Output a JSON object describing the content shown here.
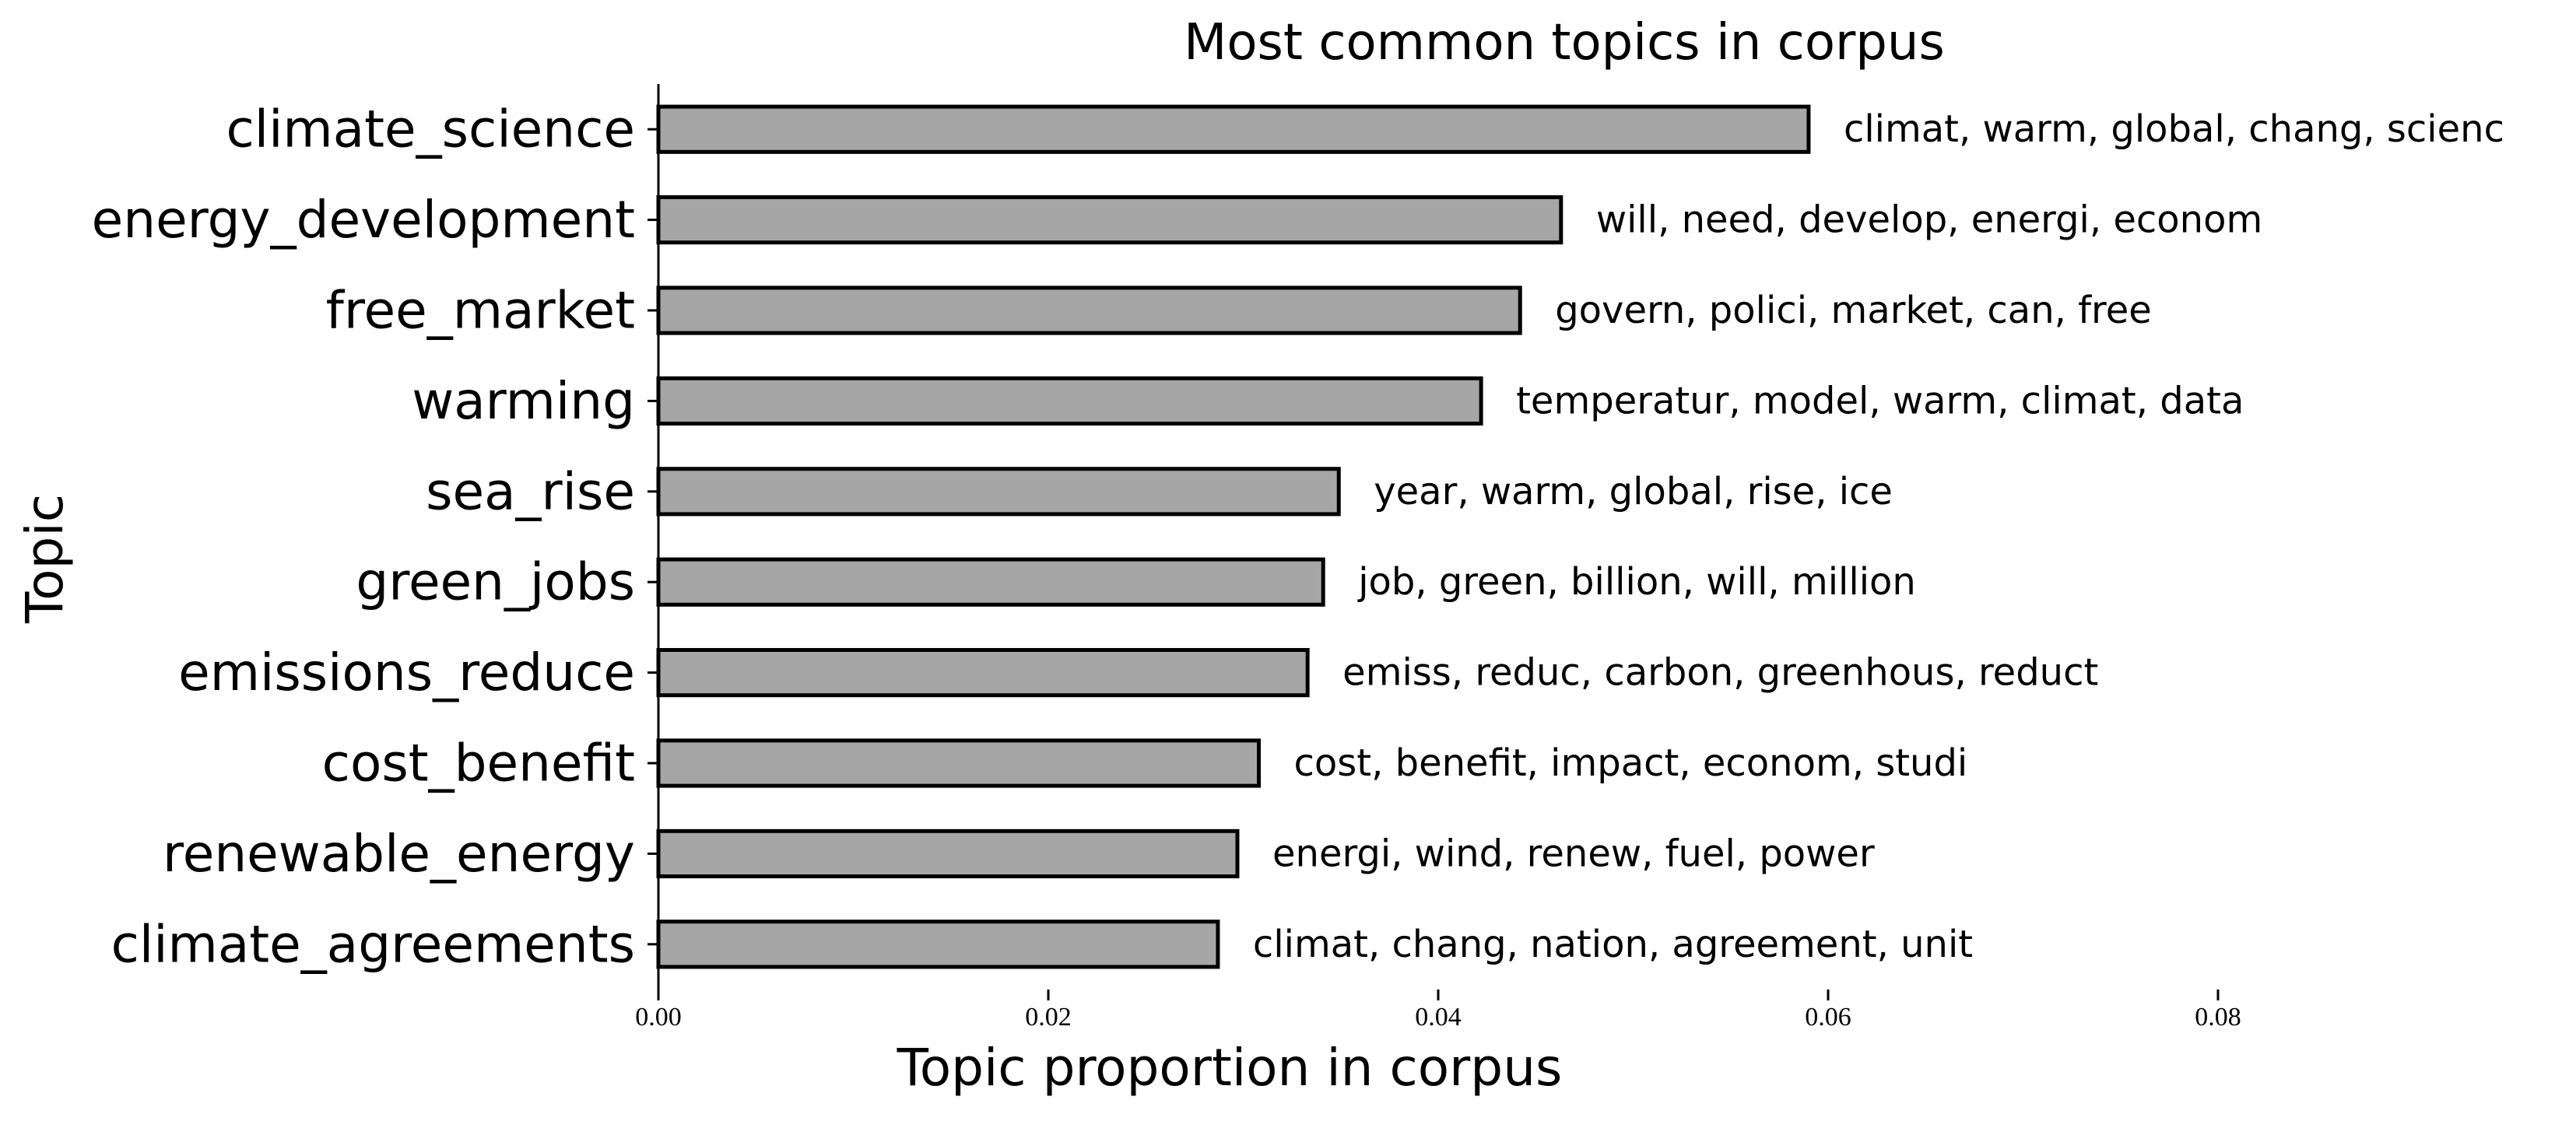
{
  "chart_data": {
    "type": "bar",
    "orientation": "horizontal",
    "title": "Most common topics in corpus",
    "xlabel": "Topic proportion in corpus",
    "ylabel": "Topic",
    "xlim": [
      0,
      0.095
    ],
    "x_ticks": [
      0.0,
      0.02,
      0.04,
      0.06,
      0.08
    ],
    "x_tick_labels": [
      "0.00",
      "0.02",
      "0.04",
      "0.06",
      "0.08"
    ],
    "grid": false,
    "bar_color": "#a6a6a6",
    "edge_color": "#000000",
    "categories": [
      "climate_science",
      "energy_development",
      "free_market",
      "warming",
      "sea_rise",
      "green_jobs",
      "emissions_reduce",
      "cost_benefit",
      "renewable_energy",
      "climate_agreements"
    ],
    "values": [
      0.059,
      0.0463,
      0.0442,
      0.0422,
      0.0349,
      0.0341,
      0.0333,
      0.0308,
      0.0297,
      0.0287
    ],
    "annotations": [
      "climat, warm, global, chang, scienc",
      "will, need, develop, energi, econom",
      "govern, polici, market, can, free",
      "temperatur, model, warm, climat, data",
      "year, warm, global, rise, ice",
      "job, green, billion, will, million",
      "emiss, reduc, carbon, greenhous, reduct",
      "cost, benefit, impact, econom, studi",
      "energi, wind, renew, fuel, power",
      "climat, chang, nation, agreement, unit"
    ]
  }
}
